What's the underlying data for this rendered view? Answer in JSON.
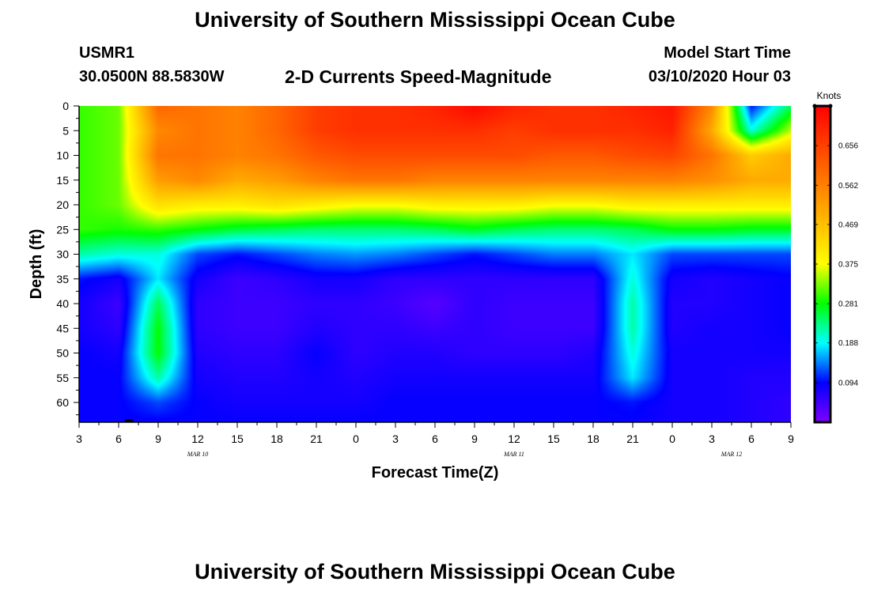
{
  "page": {
    "main_title": "University of Southern Mississippi Ocean Cube",
    "footer_title": "University of Southern Mississippi Ocean Cube",
    "station_id": "USMR1",
    "station_coords": "30.0500N 88.5830W",
    "model_start_label": "Model Start Time",
    "model_start_value": "03/10/2020 Hour 03"
  },
  "chart_data": {
    "type": "heatmap",
    "title": "2-D Currents Speed-Magnitude",
    "xlabel": "Forecast Time(Z)",
    "ylabel": "Depth (ft)",
    "x_ticks": [
      "3",
      "6",
      "9",
      "12",
      "15",
      "18",
      "21",
      "0",
      "3",
      "6",
      "9",
      "12",
      "15",
      "18",
      "21",
      "0",
      "3",
      "6",
      "9"
    ],
    "x_range_hours": [
      0,
      54
    ],
    "date_labels": [
      {
        "text": "MAR 10",
        "hour": 9
      },
      {
        "text": "MAR 11",
        "hour": 33
      },
      {
        "text": "MAR 12",
        "hour": 49.5
      }
    ],
    "y_ticks": [
      0,
      5,
      10,
      15,
      20,
      25,
      30,
      35,
      40,
      45,
      50,
      55,
      60
    ],
    "y_range_ft": [
      0,
      64
    ],
    "colorbar": {
      "unit": "Knots",
      "ticks": [
        "0.094",
        "0.188",
        "0.281",
        "0.375",
        "0.469",
        "0.562",
        "0.656"
      ],
      "tick_values": [
        0.094,
        0.188,
        0.281,
        0.375,
        0.469,
        0.562,
        0.656
      ],
      "range": [
        0.0,
        0.75
      ],
      "colors": [
        "#8000ff",
        "#0000ff",
        "#00ffff",
        "#00ff00",
        "#ffff00",
        "#ff8000",
        "#ff0000"
      ]
    },
    "speed_grid": {
      "depths_ft": [
        0,
        5,
        10,
        15,
        20,
        25,
        30,
        35,
        40,
        45,
        50,
        55,
        60,
        64
      ],
      "hours": [
        0,
        3,
        6,
        9,
        12,
        15,
        18,
        21,
        24,
        27,
        30,
        33,
        36,
        39,
        42,
        45,
        48,
        51,
        54
      ],
      "values": [
        [
          0.3,
          0.32,
          0.6,
          0.58,
          0.56,
          0.6,
          0.66,
          0.68,
          0.68,
          0.7,
          0.74,
          0.7,
          0.68,
          0.68,
          0.7,
          0.72,
          0.55,
          0.1,
          0.25
        ],
        [
          0.3,
          0.32,
          0.55,
          0.58,
          0.56,
          0.6,
          0.66,
          0.68,
          0.68,
          0.68,
          0.68,
          0.66,
          0.68,
          0.68,
          0.68,
          0.7,
          0.5,
          0.2,
          0.35
        ],
        [
          0.3,
          0.32,
          0.58,
          0.58,
          0.56,
          0.58,
          0.62,
          0.64,
          0.64,
          0.64,
          0.64,
          0.64,
          0.62,
          0.62,
          0.64,
          0.65,
          0.58,
          0.45,
          0.5
        ],
        [
          0.3,
          0.32,
          0.52,
          0.55,
          0.5,
          0.52,
          0.56,
          0.58,
          0.58,
          0.56,
          0.56,
          0.56,
          0.56,
          0.56,
          0.56,
          0.56,
          0.54,
          0.5,
          0.5
        ],
        [
          0.3,
          0.32,
          0.42,
          0.4,
          0.4,
          0.42,
          0.4,
          0.38,
          0.38,
          0.4,
          0.4,
          0.4,
          0.38,
          0.38,
          0.4,
          0.4,
          0.4,
          0.4,
          0.4
        ],
        [
          0.3,
          0.29,
          0.3,
          0.28,
          0.26,
          0.25,
          0.24,
          0.24,
          0.24,
          0.25,
          0.27,
          0.25,
          0.24,
          0.24,
          0.25,
          0.28,
          0.28,
          0.27,
          0.27
        ],
        [
          0.22,
          0.2,
          0.2,
          0.12,
          0.1,
          0.12,
          0.14,
          0.15,
          0.14,
          0.12,
          0.1,
          0.12,
          0.14,
          0.14,
          0.18,
          0.12,
          0.12,
          0.12,
          0.12
        ],
        [
          0.1,
          0.08,
          0.18,
          0.08,
          0.05,
          0.06,
          0.08,
          0.08,
          0.06,
          0.06,
          0.06,
          0.06,
          0.06,
          0.06,
          0.2,
          0.08,
          0.07,
          0.08,
          0.09
        ],
        [
          0.08,
          0.05,
          0.25,
          0.06,
          0.05,
          0.05,
          0.06,
          0.06,
          0.05,
          0.03,
          0.06,
          0.05,
          0.05,
          0.05,
          0.22,
          0.07,
          0.07,
          0.08,
          0.09
        ],
        [
          0.08,
          0.06,
          0.28,
          0.06,
          0.05,
          0.05,
          0.07,
          0.06,
          0.06,
          0.05,
          0.06,
          0.05,
          0.05,
          0.05,
          0.22,
          0.07,
          0.08,
          0.08,
          0.09
        ],
        [
          0.09,
          0.08,
          0.28,
          0.07,
          0.06,
          0.06,
          0.09,
          0.06,
          0.07,
          0.07,
          0.06,
          0.06,
          0.06,
          0.07,
          0.2,
          0.08,
          0.08,
          0.08,
          0.08
        ],
        [
          0.09,
          0.09,
          0.22,
          0.08,
          0.07,
          0.07,
          0.08,
          0.07,
          0.08,
          0.08,
          0.08,
          0.08,
          0.08,
          0.08,
          0.18,
          0.08,
          0.08,
          0.07,
          0.07
        ],
        [
          0.09,
          0.09,
          0.12,
          0.09,
          0.08,
          0.08,
          0.08,
          0.08,
          0.09,
          0.09,
          0.09,
          0.09,
          0.09,
          0.09,
          0.1,
          0.08,
          0.08,
          0.07,
          0.06
        ],
        [
          0.09,
          0.09,
          0.09,
          0.09,
          0.09,
          0.09,
          0.09,
          0.09,
          0.09,
          0.09,
          0.09,
          0.09,
          0.09,
          0.09,
          0.09,
          0.08,
          0.08,
          0.07,
          0.06
        ]
      ]
    }
  }
}
